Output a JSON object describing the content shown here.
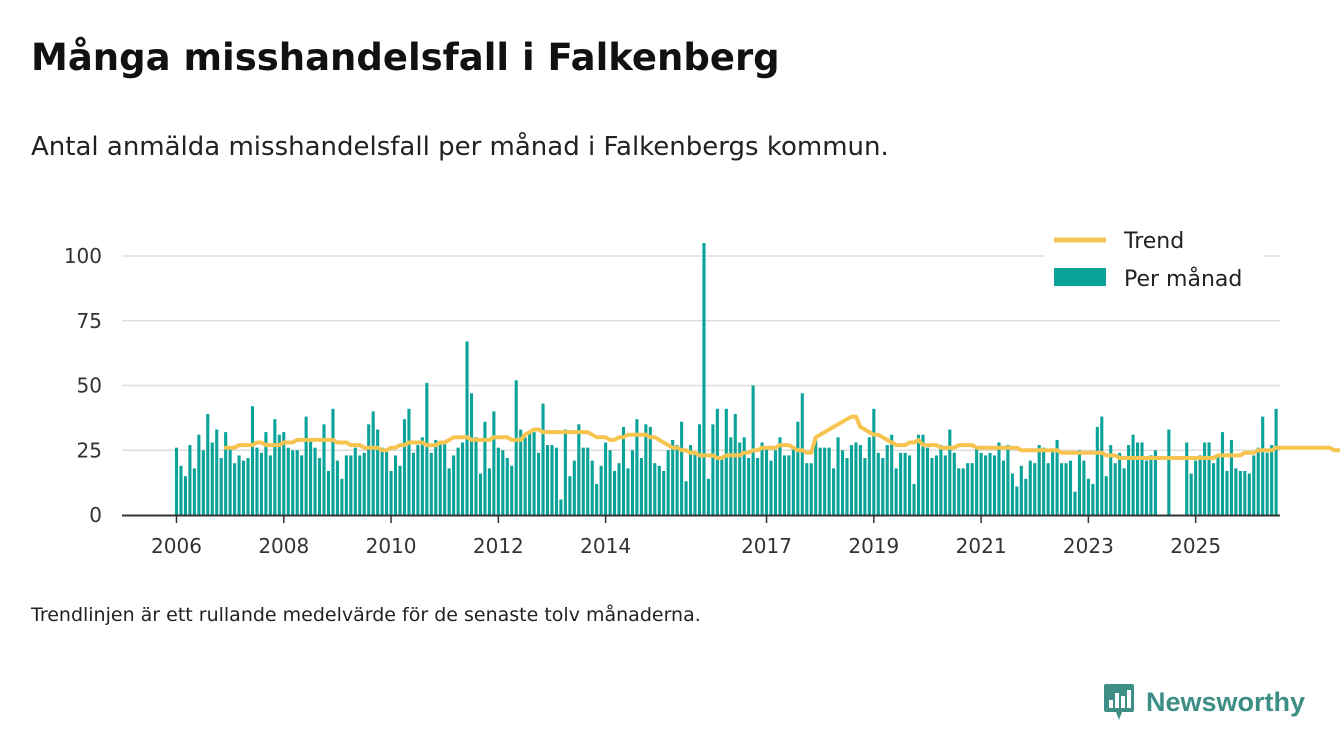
{
  "title": "Många misshandelsfall i Falkenberg",
  "subtitle": "Antal anmälda misshandelsfall per månad i Falkenbergs kommun.",
  "footnote": "Trendlinjen är ett rullande medelvärde för de senaste tolv månaderna.",
  "brand": {
    "name": "Newsworthy",
    "color": "#3d8f86"
  },
  "chart_data": {
    "type": "bar",
    "title": "",
    "xlabel": "",
    "ylabel": "",
    "ylim": [
      0,
      110
    ],
    "yticks": [
      0,
      25,
      50,
      75,
      100
    ],
    "x_tick_labels": [
      "2006",
      "2008",
      "2010",
      "2012",
      "2014",
      "2017",
      "2019",
      "2021",
      "2023",
      "2025"
    ],
    "x_start": "2006-01",
    "grid": true,
    "legend_position": "top-right",
    "colors": {
      "bars": "#0aa39a",
      "trend": "#f7c451",
      "grid": "#dddddd",
      "axis": "#333333"
    },
    "legend": [
      {
        "key": "trend",
        "label": "Trend"
      },
      {
        "key": "bars",
        "label": "Per månad"
      }
    ],
    "series": [
      {
        "key": "bars",
        "name": "Per månad",
        "values": [
          26,
          19,
          15,
          27,
          18,
          31,
          25,
          39,
          28,
          33,
          22,
          32,
          26,
          20,
          23,
          21,
          22,
          42,
          26,
          24,
          32,
          23,
          37,
          31,
          32,
          26,
          25,
          25,
          23,
          38,
          29,
          26,
          22,
          35,
          17,
          41,
          21,
          14,
          23,
          23,
          26,
          23,
          24,
          35,
          40,
          33,
          26,
          25,
          17,
          23,
          19,
          37,
          41,
          24,
          27,
          30,
          51,
          24,
          29,
          28,
          28,
          18,
          23,
          26,
          28,
          67,
          47,
          30,
          16,
          36,
          18,
          40,
          26,
          25,
          22,
          19,
          52,
          33,
          30,
          32,
          32,
          24,
          43,
          27,
          27,
          26,
          6,
          33,
          15,
          21,
          35,
          26,
          26,
          21,
          12,
          19,
          28,
          25,
          17,
          20,
          34,
          18,
          25,
          37,
          22,
          35,
          34,
          20,
          19,
          17,
          25,
          29,
          27,
          36,
          13,
          27,
          24,
          35,
          105,
          14,
          35,
          41,
          22,
          41,
          30,
          39,
          28,
          30,
          22,
          50,
          22,
          28,
          26,
          21,
          25,
          30,
          23,
          23,
          26,
          36,
          47,
          20,
          20,
          29,
          26,
          26,
          26,
          18,
          30,
          25,
          22,
          27,
          28,
          27,
          22,
          30,
          41,
          24,
          22,
          27,
          31,
          18,
          24,
          24,
          23,
          12,
          31,
          31,
          26,
          22,
          23,
          27,
          23,
          33,
          24,
          18,
          18,
          20,
          20,
          26,
          24,
          23,
          24,
          23,
          28,
          21,
          27,
          16,
          11,
          19,
          14,
          21,
          20,
          27,
          26,
          20,
          25,
          29,
          20,
          20,
          21,
          9,
          25,
          21,
          14,
          12,
          34,
          38,
          15,
          27,
          20,
          24,
          18,
          27,
          31,
          28,
          28,
          21,
          23,
          25,
          0,
          0,
          33,
          0,
          0,
          0,
          28,
          16,
          21,
          23,
          28,
          28,
          20,
          23,
          32,
          17,
          29,
          18,
          17,
          17,
          16,
          23,
          26,
          38,
          24,
          27,
          41
        ]
      },
      {
        "key": "trend",
        "name": "Trend",
        "start_index": 11,
        "values": [
          26,
          26,
          26,
          27,
          27,
          27,
          27,
          28,
          28,
          27,
          27,
          27,
          27,
          28,
          28,
          28,
          29,
          29,
          29,
          29,
          29,
          29,
          29,
          29,
          29,
          28,
          28,
          28,
          27,
          27,
          27,
          26,
          26,
          26,
          26,
          25,
          25,
          26,
          26,
          27,
          27,
          28,
          28,
          28,
          28,
          27,
          27,
          27,
          28,
          28,
          29,
          30,
          30,
          30,
          30,
          29,
          29,
          29,
          29,
          29,
          30,
          30,
          30,
          30,
          29,
          29,
          29,
          31,
          32,
          33,
          33,
          32,
          32,
          32,
          32,
          32,
          32,
          32,
          32,
          32,
          32,
          32,
          31,
          30,
          30,
          30,
          29,
          29,
          30,
          30,
          31,
          31,
          31,
          31,
          31,
          30,
          30,
          29,
          28,
          27,
          26,
          26,
          25,
          25,
          24,
          24,
          23,
          23,
          23,
          23,
          22,
          22,
          23,
          23,
          23,
          23,
          24,
          24,
          25,
          25,
          26,
          26,
          26,
          26,
          27,
          27,
          27,
          26,
          25,
          25,
          24,
          24,
          30,
          31,
          32,
          33,
          34,
          35,
          36,
          37,
          38,
          38,
          34,
          33,
          32,
          31,
          31,
          30,
          29,
          28,
          27,
          27,
          27,
          28,
          28,
          29,
          27,
          27,
          27,
          27,
          26,
          26,
          26,
          26,
          27,
          27,
          27,
          27,
          26,
          26,
          26,
          26,
          26,
          26,
          26,
          26,
          26,
          26,
          25,
          25,
          25,
          25,
          25,
          25,
          25,
          25,
          25,
          24,
          24,
          24,
          24,
          24,
          24,
          24,
          24,
          24,
          24,
          23,
          23,
          23,
          22,
          22,
          22,
          22,
          22,
          22,
          22,
          22,
          22,
          22,
          22,
          22,
          22,
          22,
          22,
          22,
          22,
          22,
          22,
          22,
          22,
          22,
          23,
          23,
          23,
          23,
          23,
          23,
          24,
          24,
          24,
          25,
          25,
          25,
          25,
          26,
          26,
          26,
          26,
          26,
          26,
          26,
          26,
          26,
          26,
          26,
          26,
          26,
          25,
          25,
          25,
          25,
          24,
          24,
          24,
          24,
          24,
          24,
          24,
          24,
          24,
          25,
          25
        ]
      }
    ]
  }
}
